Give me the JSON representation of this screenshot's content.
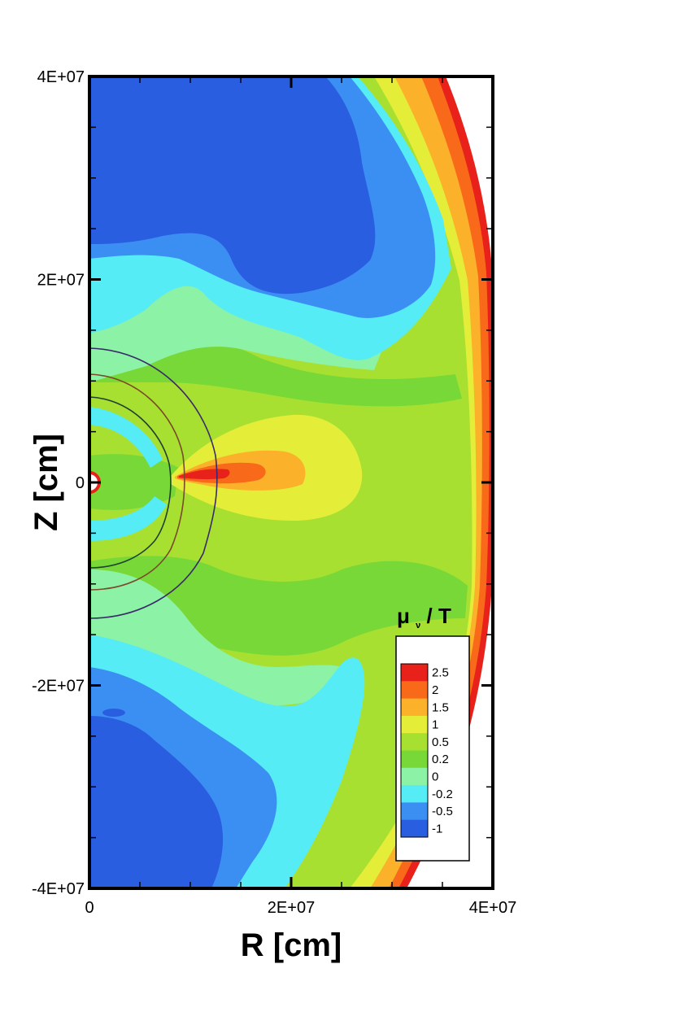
{
  "chart_data": {
    "type": "heatmap",
    "title": "",
    "xlabel": "R [cm]",
    "ylabel": "Z [cm]",
    "xlim": [
      0,
      40000000
    ],
    "ylim": [
      -40000000,
      40000000
    ],
    "x_ticks": [
      {
        "value": 0,
        "label": "0"
      },
      {
        "value": 20000000,
        "label": "2E+07"
      },
      {
        "value": 40000000,
        "label": "4E+07"
      }
    ],
    "y_ticks": [
      {
        "value": 40000000,
        "label": "4E+07"
      },
      {
        "value": 20000000,
        "label": "2E+07"
      },
      {
        "value": 0,
        "label": "0"
      },
      {
        "value": -20000000,
        "label": "-2E+07"
      },
      {
        "value": -40000000,
        "label": "-4E+07"
      }
    ],
    "colorbar": {
      "title_main": "μ",
      "title_sub": "ν",
      "title_rest": " / T",
      "levels": [
        {
          "label": "2.5",
          "color": "#e8221a"
        },
        {
          "label": "2",
          "color": "#f86a1a"
        },
        {
          "label": "1.5",
          "color": "#fbb22a"
        },
        {
          "label": "1",
          "color": "#e4ee38"
        },
        {
          "label": "0.5",
          "color": "#a8e032"
        },
        {
          "label": "0.2",
          "color": "#78d837"
        },
        {
          "label": "0",
          "color": "#8cf2a6"
        },
        {
          "label": "-0.2",
          "color": "#55ecf5"
        },
        {
          "label": "-0.5",
          "color": "#3c8ff2"
        },
        {
          "label": "-1",
          "color": "#2a5ee0"
        }
      ]
    },
    "regions": [
      {
        "level": "-1",
        "description": "upper-left lobe"
      },
      {
        "level": "-1",
        "description": "lower-left lobe"
      },
      {
        "level": "2.5",
        "description": "equatorial hotspot near R≈1.3E+07"
      },
      {
        "level": "2.5",
        "description": "outer shock front edge"
      }
    ]
  }
}
